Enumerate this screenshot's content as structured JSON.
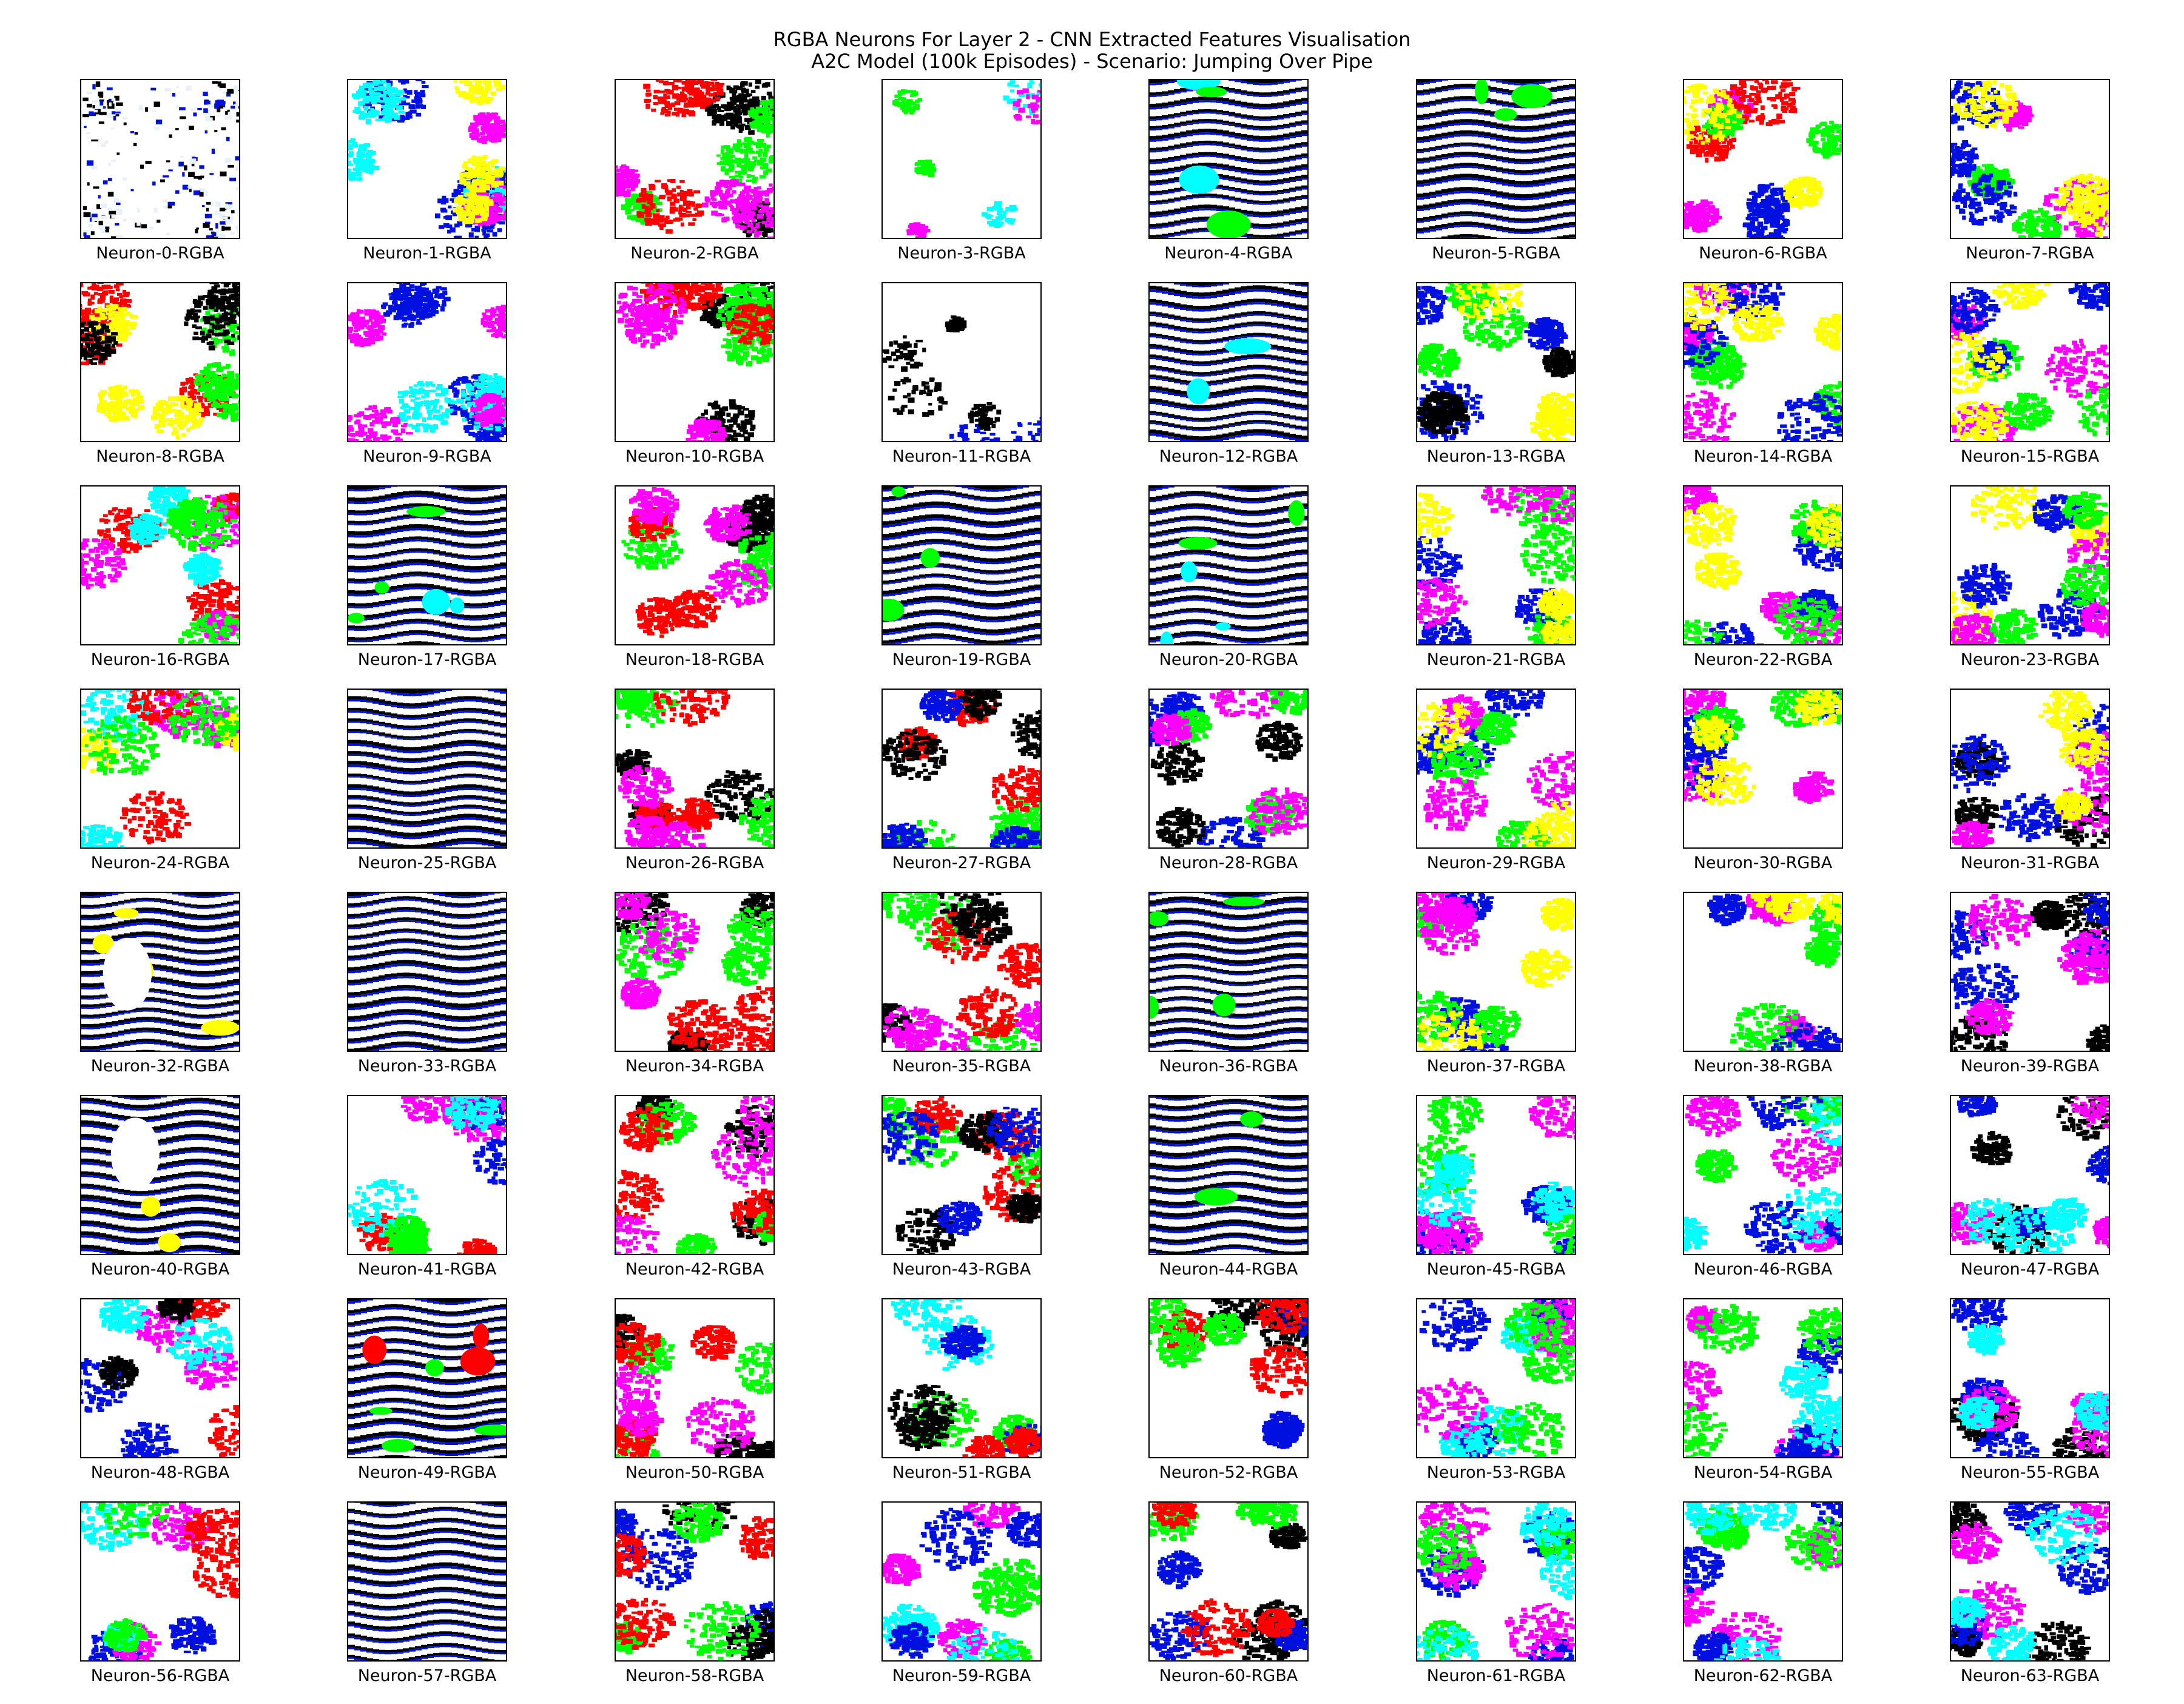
{
  "figure": {
    "title_line_1": "RGBA Neurons For Layer 2 - CNN Extracted Features Visualisation",
    "title_line_2": "A2C Model (100k Episodes) - Scenario: Jumping Over Pipe"
  },
  "palette": {
    "white": "#ffffff",
    "black": "#000000",
    "blue": "#0010e0",
    "cyan": "#00ffff",
    "green": "#00ff00",
    "magenta": "#ff00ff",
    "red": "#ff0000",
    "yellow": "#ffff00"
  },
  "neurons": [
    {
      "label": "Neuron-0-RGBA",
      "pattern": "speckle-white-black-blue"
    },
    {
      "label": "Neuron-1-RGBA",
      "pattern": "blobs-blue-cyan-magenta-yellow"
    },
    {
      "label": "Neuron-2-RGBA",
      "pattern": "blobs-black-green-red-magenta"
    },
    {
      "label": "Neuron-3-RGBA",
      "pattern": "sparse-cyan-green-magenta"
    },
    {
      "label": "Neuron-4-RGBA",
      "pattern": "stripes-black-blue-cyan-green"
    },
    {
      "label": "Neuron-5-RGBA",
      "pattern": "stripes-black-blue-green"
    },
    {
      "label": "Neuron-6-RGBA",
      "pattern": "blobs-blue-magenta-red-green-yellow"
    },
    {
      "label": "Neuron-7-RGBA",
      "pattern": "blobs-magenta-green-blue-yellow"
    },
    {
      "label": "Neuron-8-RGBA",
      "pattern": "blobs-red-green-yellow-black"
    },
    {
      "label": "Neuron-9-RGBA",
      "pattern": "blobs-blue-cyan-magenta"
    },
    {
      "label": "Neuron-10-RGBA",
      "pattern": "blobs-black-green-red-magenta"
    },
    {
      "label": "Neuron-11-RGBA",
      "pattern": "sparse-black-blue-stripes"
    },
    {
      "label": "Neuron-12-RGBA",
      "pattern": "stripes-black-blue-cyan"
    },
    {
      "label": "Neuron-13-RGBA",
      "pattern": "blobs-blue-green-yellow-black"
    },
    {
      "label": "Neuron-14-RGBA",
      "pattern": "blobs-magenta-green-blue-yellow"
    },
    {
      "label": "Neuron-15-RGBA",
      "pattern": "blobs-magenta-green-blue-yellow"
    },
    {
      "label": "Neuron-16-RGBA",
      "pattern": "blobs-red-magenta-cyan-green"
    },
    {
      "label": "Neuron-17-RGBA",
      "pattern": "stripes-black-blue-cyan-green"
    },
    {
      "label": "Neuron-18-RGBA",
      "pattern": "blobs-black-green-red-magenta"
    },
    {
      "label": "Neuron-19-RGBA",
      "pattern": "stripes-black-cyan-green"
    },
    {
      "label": "Neuron-20-RGBA",
      "pattern": "stripes-black-blue-green-cyan"
    },
    {
      "label": "Neuron-21-RGBA",
      "pattern": "blobs-blue-green-yellow-magenta"
    },
    {
      "label": "Neuron-22-RGBA",
      "pattern": "blobs-magenta-blue-green-yellow"
    },
    {
      "label": "Neuron-23-RGBA",
      "pattern": "blobs-yellow-blue-magenta-green"
    },
    {
      "label": "Neuron-24-RGBA",
      "pattern": "blobs-magenta-cyan-yellow-red-green"
    },
    {
      "label": "Neuron-25-RGBA",
      "pattern": "stripes-black-blue"
    },
    {
      "label": "Neuron-26-RGBA",
      "pattern": "blobs-black-green-red-magenta"
    },
    {
      "label": "Neuron-27-RGBA",
      "pattern": "blobs-green-red-black-blue"
    },
    {
      "label": "Neuron-28-RGBA",
      "pattern": "blobs-blue-black-green-magenta"
    },
    {
      "label": "Neuron-29-RGBA",
      "pattern": "blobs-blue-green-magenta-yellow"
    },
    {
      "label": "Neuron-30-RGBA",
      "pattern": "blobs-magenta-blue-green-yellow"
    },
    {
      "label": "Neuron-31-RGBA",
      "pattern": "blobs-black-blue-magenta-yellow"
    },
    {
      "label": "Neuron-32-RGBA",
      "pattern": "stripes-black-blue-yellow"
    },
    {
      "label": "Neuron-33-RGBA",
      "pattern": "stripes-black-blue"
    },
    {
      "label": "Neuron-34-RGBA",
      "pattern": "blobs-black-green-red-magenta"
    },
    {
      "label": "Neuron-35-RGBA",
      "pattern": "blobs-green-red-black-magenta"
    },
    {
      "label": "Neuron-36-RGBA",
      "pattern": "stripes-black-blue-green"
    },
    {
      "label": "Neuron-37-RGBA",
      "pattern": "blobs-blue-green-magenta-yellow"
    },
    {
      "label": "Neuron-38-RGBA",
      "pattern": "blobs-magenta-green-yellow-blue"
    },
    {
      "label": "Neuron-39-RGBA",
      "pattern": "blobs-black-blue-magenta"
    },
    {
      "label": "Neuron-40-RGBA",
      "pattern": "stripes-black-blue-yellow"
    },
    {
      "label": "Neuron-41-RGBA",
      "pattern": "blobs-red-blue-magenta-cyan-green"
    },
    {
      "label": "Neuron-42-RGBA",
      "pattern": "blobs-black-green-red-magenta"
    },
    {
      "label": "Neuron-43-RGBA",
      "pattern": "blobs-green-red-black-blue"
    },
    {
      "label": "Neuron-44-RGBA",
      "pattern": "stripes-black-blue-green"
    },
    {
      "label": "Neuron-45-RGBA",
      "pattern": "blobs-blue-green-magenta-cyan"
    },
    {
      "label": "Neuron-46-RGBA",
      "pattern": "blobs-magenta-green-blue-cyan"
    },
    {
      "label": "Neuron-47-RGBA",
      "pattern": "blobs-black-blue-magenta-cyan"
    },
    {
      "label": "Neuron-48-RGBA",
      "pattern": "blobs-blue-magenta-red-black-cyan"
    },
    {
      "label": "Neuron-49-RGBA",
      "pattern": "stripes-black-blue-green-red"
    },
    {
      "label": "Neuron-50-RGBA",
      "pattern": "blobs-black-green-red-magenta"
    },
    {
      "label": "Neuron-51-RGBA",
      "pattern": "blobs-cyan-green-blue-black-red"
    },
    {
      "label": "Neuron-52-RGBA",
      "pattern": "blobs-black-blue-red-green"
    },
    {
      "label": "Neuron-53-RGBA",
      "pattern": "blobs-blue-cyan-magenta-green"
    },
    {
      "label": "Neuron-54-RGBA",
      "pattern": "blobs-magenta-blue-green-cyan"
    },
    {
      "label": "Neuron-55-RGBA",
      "pattern": "blobs-black-blue-magenta-cyan"
    },
    {
      "label": "Neuron-56-RGBA",
      "pattern": "blobs-blue-magenta-cyan-red-green"
    },
    {
      "label": "Neuron-57-RGBA",
      "pattern": "stripes-black-blue"
    },
    {
      "label": "Neuron-58-RGBA",
      "pattern": "blobs-blue-black-green-red"
    },
    {
      "label": "Neuron-59-RGBA",
      "pattern": "blobs-green-magenta-cyan-blue"
    },
    {
      "label": "Neuron-60-RGBA",
      "pattern": "blobs-black-blue-green-red"
    },
    {
      "label": "Neuron-61-RGBA",
      "pattern": "blobs-blue-magenta-green-cyan"
    },
    {
      "label": "Neuron-62-RGBA",
      "pattern": "blobs-magenta-blue-green-cyan"
    },
    {
      "label": "Neuron-63-RGBA",
      "pattern": "blobs-black-blue-magenta-cyan"
    }
  ]
}
